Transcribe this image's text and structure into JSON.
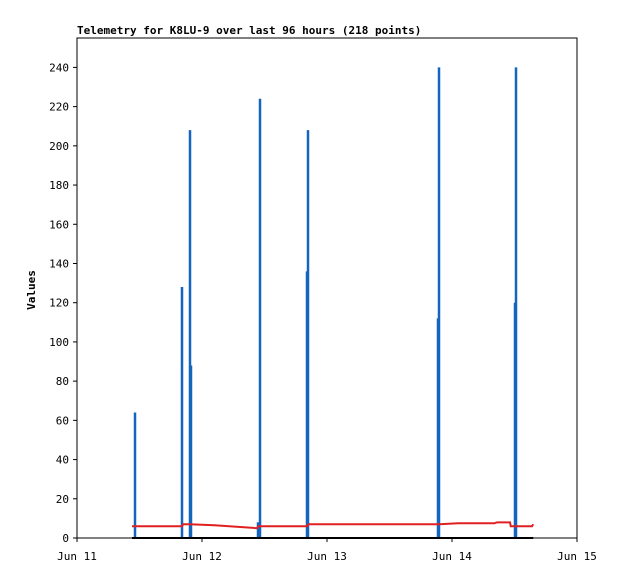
{
  "chart_data": {
    "type": "line",
    "title": "Telemetry for K8LU-9 over last 96 hours (218 points)",
    "ylabel": "Values",
    "xlim": [
      11,
      15
    ],
    "xticks": [
      {
        "value": 11,
        "label": "Jun 11"
      },
      {
        "value": 12,
        "label": "Jun 12"
      },
      {
        "value": 13,
        "label": "Jun 13"
      },
      {
        "value": 14,
        "label": "Jun 14"
      },
      {
        "value": 15,
        "label": "Jun 15"
      }
    ],
    "ylim": [
      0,
      255
    ],
    "yticks": [
      0,
      20,
      40,
      60,
      80,
      100,
      120,
      140,
      160,
      180,
      200,
      220,
      240
    ],
    "grid": false,
    "series": [
      {
        "color": "#1565c0",
        "style": "impulse",
        "x": [
          11.464,
          11.84,
          11.904,
          11.912,
          12.448,
          12.464,
          12.84,
          12.848,
          13.888,
          13.896,
          14.504,
          14.512
        ],
        "values": [
          64,
          128,
          208,
          88,
          8,
          224,
          136,
          208,
          112,
          240,
          120,
          240
        ]
      },
      {
        "color": "#e02020",
        "style": "line",
        "x": [
          11.44,
          11.84,
          11.85,
          11.9,
          12.1,
          12.44,
          12.45,
          12.84,
          12.85,
          13.9,
          14.048,
          14.34,
          14.36,
          14.464,
          14.47,
          14.64,
          14.65
        ],
        "values": [
          6,
          6,
          7,
          7,
          6.5,
          5,
          6,
          6,
          7,
          7,
          7.5,
          7.5,
          8,
          8,
          6,
          6,
          7
        ]
      },
      {
        "color": "#000000",
        "style": "line",
        "x": [
          11.44,
          14.65
        ],
        "values": [
          0,
          0
        ]
      }
    ]
  }
}
